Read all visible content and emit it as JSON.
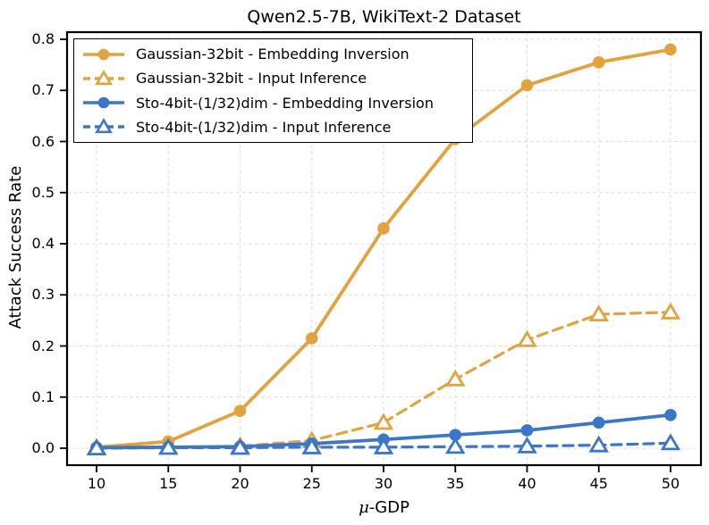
{
  "chart_data": {
    "type": "line",
    "title": "Qwen2.5-7B, WikiText-2 Dataset",
    "xlabel": "μ-GDP",
    "xlabel_mu": "μ",
    "xlabel_rest": "-GDP",
    "ylabel": "Attack Success Rate",
    "x": [
      10,
      15,
      20,
      25,
      30,
      35,
      40,
      45,
      50
    ],
    "xticks": [
      10,
      15,
      20,
      25,
      30,
      35,
      40,
      45,
      50
    ],
    "yticks": [
      0.0,
      0.1,
      0.2,
      0.3,
      0.4,
      0.5,
      0.6,
      0.7,
      0.8
    ],
    "xlim": [
      7.9,
      52.1
    ],
    "ylim": [
      -0.033,
      0.814
    ],
    "grid": true,
    "grid_style": "dashed",
    "legend_position": "upper left",
    "colors": {
      "gold": "#E2A33D",
      "blue": "#3C76C8",
      "grid": "#DCDCDC",
      "spine": "#000000"
    },
    "series": [
      {
        "name": "Gaussian-32bit - Embedding Inversion",
        "color": "#E2A33D",
        "line": "solid",
        "marker": "circle-filled",
        "values": [
          0.002,
          0.013,
          0.073,
          0.215,
          0.43,
          0.605,
          0.71,
          0.755,
          0.78
        ]
      },
      {
        "name": "Gaussian-32bit - Input Inference",
        "color": "#E2A33D",
        "line": "dashed",
        "marker": "triangle-open",
        "values": [
          0.001,
          0.002,
          0.004,
          0.015,
          0.05,
          0.135,
          0.212,
          0.262,
          0.266
        ]
      },
      {
        "name": "Sto-4bit-(1/32)dim - Embedding Inversion",
        "color": "#3C76C8",
        "line": "solid",
        "marker": "circle-filled",
        "values": [
          0.001,
          0.002,
          0.003,
          0.009,
          0.017,
          0.026,
          0.035,
          0.05,
          0.065
        ]
      },
      {
        "name": "Sto-4bit-(1/32)dim - Input Inference",
        "color": "#3C76C8",
        "line": "dashed",
        "marker": "triangle-open",
        "values": [
          0.0,
          0.001,
          0.001,
          0.002,
          0.002,
          0.003,
          0.004,
          0.006,
          0.01
        ]
      }
    ]
  }
}
